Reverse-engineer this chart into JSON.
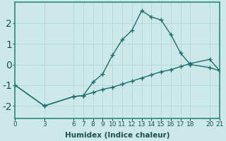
{
  "xlabel": "Humidex (Indice chaleur)",
  "background_color": "#cce8e8",
  "line_color": "#1a6e6e",
  "marker": "+",
  "x_upper": [
    0,
    3,
    6,
    7,
    8,
    9,
    10,
    11,
    12,
    13,
    14,
    15,
    16,
    17,
    18,
    20,
    21
  ],
  "y_upper": [
    -1.0,
    -2.0,
    -1.55,
    -1.5,
    -0.85,
    -0.45,
    0.45,
    1.2,
    1.65,
    2.6,
    2.3,
    2.15,
    1.45,
    0.55,
    0.0,
    -0.15,
    -0.3
  ],
  "x_lower": [
    0,
    3,
    6,
    7,
    8,
    9,
    10,
    11,
    12,
    13,
    14,
    15,
    16,
    17,
    18,
    20,
    21
  ],
  "y_lower": [
    -1.0,
    -2.0,
    -1.55,
    -1.5,
    -1.35,
    -1.2,
    -1.1,
    -0.95,
    -0.8,
    -0.65,
    -0.5,
    -0.35,
    -0.25,
    -0.1,
    0.05,
    0.25,
    -0.3
  ],
  "xlim": [
    0,
    21
  ],
  "ylim": [
    -2.6,
    3.0
  ],
  "xticks": [
    0,
    3,
    6,
    7,
    8,
    9,
    10,
    11,
    12,
    13,
    14,
    15,
    16,
    17,
    18,
    20,
    21
  ],
  "yticks": [
    -2,
    -1,
    0,
    1,
    2
  ],
  "grid_color": "#b8d8d8",
  "spine_color": "#2a8a7a",
  "line_width": 1.0,
  "xlabel_fontsize": 7.5,
  "tick_fontsize": 6.5,
  "ytick_fontsize": 7.0
}
